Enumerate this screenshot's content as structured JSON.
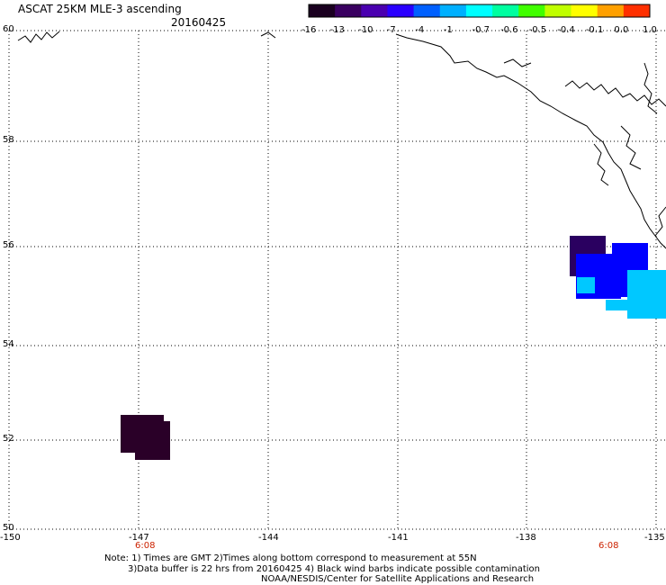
{
  "header": {
    "title": "ASCAT 25KM MLE-3 ascending",
    "date": "20160425"
  },
  "colorbar": {
    "labels": [
      "-16",
      "-13",
      "-10",
      "-7",
      "-4",
      "-1",
      "-0.7",
      "-0.6",
      "-0.5",
      "-0.4",
      "-0.1",
      "0.0",
      "1.0"
    ],
    "colors": [
      "#1a0020",
      "#3a0060",
      "#4a00b0",
      "#2a00ff",
      "#0060ff",
      "#00b0ff",
      "#00ffff",
      "#00ffa0",
      "#40ff00",
      "#c0ff00",
      "#ffff00",
      "#ffa000",
      "#ff3000"
    ]
  },
  "axes": {
    "lat_labels": [
      "60",
      "58",
      "56",
      "54",
      "52",
      "50"
    ],
    "lon_labels": [
      "-150",
      "-147",
      "-144",
      "-141",
      "-138",
      "-135"
    ],
    "time_labels": [
      "6:08",
      "6:08"
    ]
  },
  "data_patches": [
    {
      "color": "#2a0060"
    },
    {
      "color": "#0000ff"
    },
    {
      "color": "#00c8ff"
    },
    {
      "color": "#2a0028"
    }
  ],
  "notes": {
    "line1": "Note: 1) Times are GMT 2)Times along bottom correspond to measurement at 55N",
    "line2": "3)Data buffer is 22 hrs from 20160425 4) Black wind barbs indicate possible contamination",
    "line3": "NOAA/NESDIS/Center for Satellite Applications and Research"
  }
}
